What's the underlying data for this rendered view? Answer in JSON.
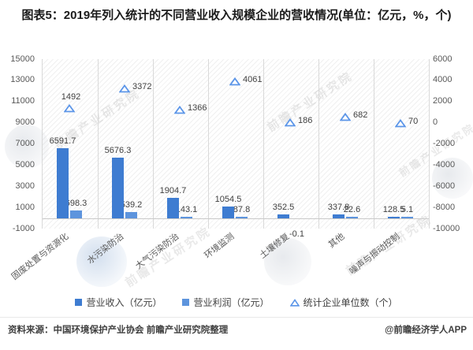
{
  "title": "图表5：2019年列入统计的不同营业收入规模企业的营收情况(单位：亿元，%，个)",
  "chart_data": {
    "type": "bar",
    "categories": [
      "固废处置与资源化",
      "水污染防治",
      "大气污染防治",
      "环境监测",
      "土壤修复",
      "其他",
      "噪声与振动控制"
    ],
    "series": [
      {
        "name": "营业收入（亿元）",
        "type": "bar",
        "axis": "left",
        "color": "#3e7cd1",
        "values": [
          6591.7,
          5676.3,
          1904.7,
          1054.5,
          352.5,
          337.8,
          128.5
        ]
      },
      {
        "name": "营业利润（亿元）",
        "type": "bar",
        "axis": "left",
        "color": "#5d94dd",
        "values": [
          698.3,
          539.2,
          143.1,
          87.8,
          -0.1,
          22.6,
          5.1
        ]
      },
      {
        "name": "统计企业单位数（个）",
        "type": "scatter",
        "marker": "triangle-outline",
        "axis": "right",
        "color": "#5b95e8",
        "values": [
          1492,
          3372,
          1366,
          4061,
          186,
          682,
          70
        ]
      }
    ],
    "left_axis": {
      "min": -1000,
      "max": 15000,
      "ticks": [
        15000,
        13000,
        11000,
        9000,
        7000,
        5000,
        3000,
        1000,
        -1000
      ]
    },
    "right_axis": {
      "min": -10000,
      "max": 6000,
      "ticks": [
        6000,
        4000,
        2000,
        0,
        -2000,
        -4000,
        -6000,
        -8000,
        -10000
      ]
    },
    "legend_position": "bottom",
    "grid": "vertical-category-separators",
    "data_labels": true
  },
  "footer": {
    "source": "资料来源：中国环境保护产业协会 前瞻产业研究院整理",
    "credit": "@前瞻经济学人APP"
  },
  "watermark": {
    "text": "前瞻产业研究院"
  }
}
